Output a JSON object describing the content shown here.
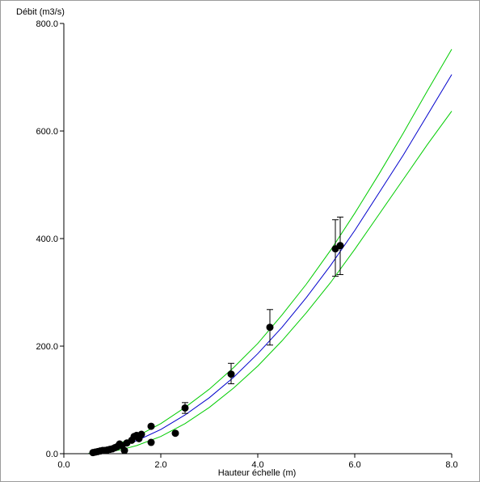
{
  "chart_data": {
    "type": "scatter",
    "xlabel": "Hauteur échelle (m)",
    "ylabel": "Débit (m3/s)",
    "xlim": [
      0,
      8
    ],
    "ylim": [
      0,
      800
    ],
    "x_ticks": [
      "0.0",
      "2.0",
      "4.0",
      "6.0",
      "8.0"
    ],
    "y_ticks": [
      "0.0",
      "200.0",
      "400.0",
      "600.0",
      "800.0"
    ],
    "grid": false,
    "legend": "none",
    "colors": {
      "curve": "#0000cc",
      "bounds": "#00cc00",
      "points": "#000000",
      "axis": "#000000"
    },
    "curves": [
      {
        "role": "fit",
        "x": [
          0.5,
          0.8,
          1.0,
          1.2,
          1.5,
          2.0,
          2.5,
          3.0,
          3.5,
          4.0,
          4.5,
          5.0,
          5.5,
          6.0,
          6.5,
          7.0,
          7.5,
          8.0
        ],
        "y": [
          0,
          4,
          8,
          14,
          24,
          45,
          72,
          104,
          142,
          186,
          235,
          290,
          350,
          415,
          485,
          555,
          630,
          705
        ]
      },
      {
        "role": "upper",
        "x": [
          0.5,
          0.8,
          1.0,
          1.2,
          1.5,
          2.0,
          2.5,
          3.0,
          3.5,
          4.0,
          4.5,
          5.0,
          5.5,
          6.0,
          6.5,
          7.0,
          7.5,
          8.0
        ],
        "y": [
          0,
          8,
          14,
          21,
          32,
          56,
          86,
          120,
          160,
          205,
          258,
          315,
          378,
          447,
          520,
          596,
          675,
          752
        ]
      },
      {
        "role": "lower",
        "x": [
          0.5,
          0.8,
          1.0,
          1.2,
          1.5,
          2.0,
          2.5,
          3.0,
          3.5,
          4.0,
          4.5,
          5.0,
          5.5,
          6.0,
          6.5,
          7.0,
          7.5,
          8.0
        ],
        "y": [
          0,
          2,
          4,
          8,
          15,
          32,
          56,
          86,
          122,
          163,
          210,
          262,
          318,
          380,
          445,
          510,
          575,
          637
        ]
      }
    ],
    "points": [
      {
        "x": 0.6,
        "y": 2
      },
      {
        "x": 0.65,
        "y": 3
      },
      {
        "x": 0.7,
        "y": 4
      },
      {
        "x": 0.75,
        "y": 5
      },
      {
        "x": 0.8,
        "y": 6
      },
      {
        "x": 0.85,
        "y": 6
      },
      {
        "x": 0.9,
        "y": 7
      },
      {
        "x": 0.95,
        "y": 8
      },
      {
        "x": 1.0,
        "y": 9
      },
      {
        "x": 1.05,
        "y": 11
      },
      {
        "x": 1.1,
        "y": 13
      },
      {
        "x": 1.15,
        "y": 18
      },
      {
        "x": 1.2,
        "y": 15
      },
      {
        "x": 1.25,
        "y": 6
      },
      {
        "x": 1.3,
        "y": 20
      },
      {
        "x": 1.4,
        "y": 25
      },
      {
        "x": 1.45,
        "y": 32
      },
      {
        "x": 1.5,
        "y": 34
      },
      {
        "x": 1.55,
        "y": 28
      },
      {
        "x": 1.6,
        "y": 36
      },
      {
        "x": 1.8,
        "y": 21
      },
      {
        "x": 1.8,
        "y": 51
      },
      {
        "x": 2.3,
        "y": 38
      },
      {
        "x": 2.5,
        "y": 85
      },
      {
        "x": 3.45,
        "y": 148
      },
      {
        "x": 4.25,
        "y": 235
      },
      {
        "x": 5.6,
        "y": 381
      },
      {
        "x": 5.7,
        "y": 387
      }
    ],
    "error_bars": [
      {
        "x": 2.5,
        "low": 75,
        "high": 95
      },
      {
        "x": 3.45,
        "low": 130,
        "high": 168
      },
      {
        "x": 4.25,
        "low": 202,
        "high": 268
      },
      {
        "x": 5.6,
        "low": 330,
        "high": 435
      },
      {
        "x": 5.7,
        "low": 333,
        "high": 440
      }
    ]
  }
}
